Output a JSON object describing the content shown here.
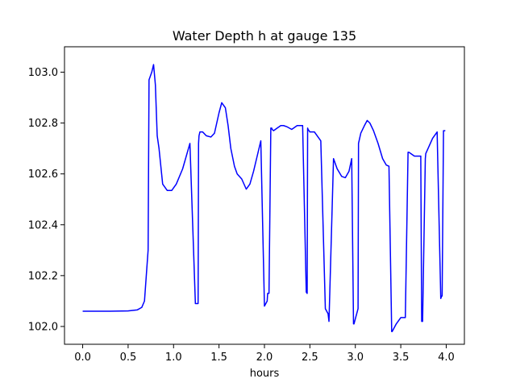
{
  "chart_data": {
    "type": "line",
    "title": "Water Depth h at gauge 135",
    "xlabel": "hours",
    "ylabel": "",
    "xlim": [
      -0.2,
      4.2
    ],
    "ylim": [
      101.93,
      103.1
    ],
    "xticks": [
      0.0,
      0.5,
      1.0,
      1.5,
      2.0,
      2.5,
      3.0,
      3.5,
      4.0
    ],
    "xtick_labels": [
      "0.0",
      "0.5",
      "1.0",
      "1.5",
      "2.0",
      "2.5",
      "3.0",
      "3.5",
      "4.0"
    ],
    "yticks": [
      102.0,
      102.2,
      102.4,
      102.6,
      102.8,
      103.0
    ],
    "ytick_labels": [
      "102.0",
      "102.2",
      "102.4",
      "102.6",
      "102.8",
      "103.0"
    ],
    "grid": false,
    "legend": "none",
    "series": [
      {
        "color": "#0000ff",
        "x": [
          0.0,
          0.3,
          0.5,
          0.6,
          0.65,
          0.68,
          0.7,
          0.72,
          0.73,
          0.74,
          0.76,
          0.78,
          0.8,
          0.82,
          0.84,
          0.88,
          0.93,
          0.98,
          1.03,
          1.1,
          1.18,
          1.24,
          1.27,
          1.275,
          1.28,
          1.29,
          1.32,
          1.36,
          1.41,
          1.45,
          1.5,
          1.53,
          1.57,
          1.6,
          1.63,
          1.67,
          1.7,
          1.75,
          1.8,
          1.84,
          1.88,
          1.92,
          1.96,
          2.0,
          2.03,
          2.035,
          2.05,
          2.07,
          2.08,
          2.085,
          2.1,
          2.14,
          2.18,
          2.21,
          2.25,
          2.3,
          2.36,
          2.42,
          2.46,
          2.47,
          2.475,
          2.48,
          2.49,
          2.5,
          2.55,
          2.62,
          2.67,
          2.7,
          2.71,
          2.76,
          2.77,
          2.78,
          2.8,
          2.85,
          2.89,
          2.93,
          2.96,
          2.98,
          2.985,
          3.0,
          3.03,
          3.035,
          3.06,
          3.1,
          3.13,
          3.16,
          3.2,
          3.25,
          3.3,
          3.34,
          3.37,
          3.4,
          3.405,
          3.45,
          3.5,
          3.55,
          3.58,
          3.59,
          3.65,
          3.72,
          3.73,
          3.74,
          3.77,
          3.775,
          3.8,
          3.85,
          3.9,
          3.94,
          3.95,
          3.955,
          3.97,
          3.98,
          3.99
        ],
        "y": [
          102.06,
          102.06,
          102.061,
          102.065,
          102.075,
          102.1,
          102.2,
          102.3,
          102.97,
          102.98,
          103.0,
          103.03,
          102.95,
          102.75,
          102.7,
          102.56,
          102.535,
          102.535,
          102.56,
          102.62,
          102.72,
          102.09,
          102.09,
          102.72,
          102.75,
          102.765,
          102.765,
          102.75,
          102.745,
          102.76,
          102.84,
          102.88,
          102.86,
          102.79,
          102.7,
          102.63,
          102.6,
          102.58,
          102.54,
          102.56,
          102.61,
          102.67,
          102.73,
          102.08,
          102.1,
          102.13,
          102.13,
          102.78,
          102.78,
          102.775,
          102.77,
          102.78,
          102.79,
          102.79,
          102.785,
          102.775,
          102.79,
          102.79,
          102.135,
          102.13,
          102.78,
          102.775,
          102.77,
          102.765,
          102.765,
          102.73,
          102.07,
          102.05,
          102.02,
          102.66,
          102.65,
          102.64,
          102.62,
          102.59,
          102.585,
          102.61,
          102.66,
          102.01,
          102.01,
          102.03,
          102.07,
          102.72,
          102.76,
          102.79,
          102.81,
          102.8,
          102.77,
          102.72,
          102.66,
          102.635,
          102.63,
          101.98,
          101.98,
          102.01,
          102.035,
          102.035,
          102.685,
          102.685,
          102.67,
          102.67,
          102.02,
          102.02,
          102.66,
          102.68,
          102.7,
          102.74,
          102.765,
          102.11,
          102.12,
          102.12,
          102.77,
          102.77,
          102.77
        ]
      }
    ]
  }
}
